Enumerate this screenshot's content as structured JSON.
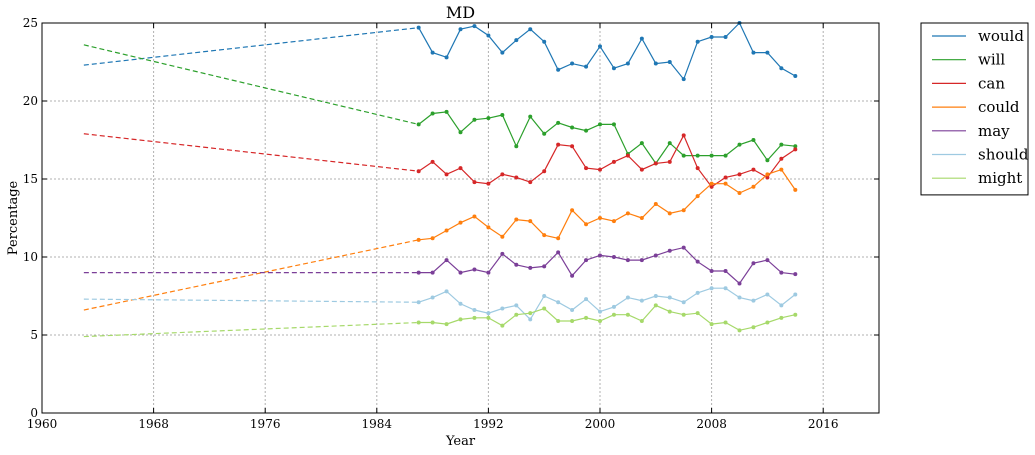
{
  "chart_data": {
    "type": "line",
    "title": "MD",
    "xlabel": "Year",
    "ylabel": "Percentage",
    "xlim": [
      1960,
      2020
    ],
    "ylim": [
      0,
      25
    ],
    "xticks": [
      1960,
      1968,
      1976,
      1984,
      1992,
      2000,
      2008,
      2016
    ],
    "yticks": [
      0,
      5,
      10,
      15,
      20,
      25
    ],
    "grid": true,
    "legend_position": "outside-right-top",
    "x": [
      1987,
      1988,
      1989,
      1990,
      1991,
      1992,
      1993,
      1994,
      1995,
      1996,
      1997,
      1998,
      1999,
      2000,
      2001,
      2002,
      2003,
      2004,
      2005,
      2006,
      2007,
      2008,
      2009,
      2010,
      2011,
      2012,
      2013,
      2014
    ],
    "series": [
      {
        "name": "would",
        "color": "#1f77b4",
        "start": [
          1963,
          22.3
        ],
        "values": [
          24.7,
          23.1,
          22.8,
          24.6,
          24.8,
          24.2,
          23.1,
          23.9,
          24.6,
          23.8,
          22.0,
          22.4,
          22.2,
          23.5,
          22.1,
          22.4,
          24.0,
          22.4,
          22.5,
          21.4,
          23.8,
          24.1,
          24.1,
          25.0,
          23.1,
          23.1,
          22.1,
          21.6
        ]
      },
      {
        "name": "will",
        "color": "#2ca02c",
        "start": [
          1963,
          23.6
        ],
        "values": [
          18.5,
          19.2,
          19.3,
          18.0,
          18.8,
          18.9,
          19.1,
          17.1,
          19.0,
          17.9,
          18.6,
          18.3,
          18.1,
          18.5,
          18.5,
          16.6,
          17.3,
          16.0,
          17.3,
          16.5,
          16.5,
          16.5,
          16.5,
          17.2,
          17.5,
          16.2,
          17.2,
          17.1
        ]
      },
      {
        "name": "can",
        "color": "#d62728",
        "start": [
          1963,
          17.9
        ],
        "values": [
          15.5,
          16.1,
          15.3,
          15.7,
          14.8,
          14.7,
          15.3,
          15.1,
          14.8,
          15.5,
          17.2,
          17.1,
          15.7,
          15.6,
          16.1,
          16.5,
          15.6,
          16.0,
          16.1,
          17.8,
          15.7,
          14.5,
          15.1,
          15.3,
          15.6,
          15.1,
          16.3,
          16.9
        ]
      },
      {
        "name": "could",
        "color": "#ff7f0e",
        "start": [
          1963,
          6.6
        ],
        "values": [
          11.1,
          11.2,
          11.7,
          12.2,
          12.6,
          11.9,
          11.3,
          12.4,
          12.3,
          11.4,
          11.2,
          13.0,
          12.1,
          12.5,
          12.3,
          12.8,
          12.5,
          13.4,
          12.8,
          13.0,
          13.9,
          14.7,
          14.7,
          14.1,
          14.5,
          15.3,
          15.6,
          14.3
        ]
      },
      {
        "name": "may",
        "color": "#7b3f98",
        "start": [
          1963,
          9.0
        ],
        "values": [
          9.0,
          9.0,
          9.8,
          9.0,
          9.2,
          9.0,
          10.2,
          9.5,
          9.3,
          9.4,
          10.3,
          8.8,
          9.8,
          10.1,
          10.0,
          9.8,
          9.8,
          10.1,
          10.4,
          10.6,
          9.7,
          9.1,
          9.1,
          8.3,
          9.6,
          9.8,
          9.0,
          8.9
        ]
      },
      {
        "name": "should",
        "color": "#9ecae1",
        "start": [
          1963,
          7.3
        ],
        "values": [
          7.1,
          7.4,
          7.8,
          7.0,
          6.6,
          6.4,
          6.7,
          6.9,
          6.0,
          7.5,
          7.1,
          6.6,
          7.3,
          6.5,
          6.8,
          7.4,
          7.2,
          7.5,
          7.4,
          7.1,
          7.7,
          8.0,
          8.0,
          7.4,
          7.2,
          7.6,
          6.9,
          7.6
        ]
      },
      {
        "name": "might",
        "color": "#a6d96a",
        "start": [
          1963,
          4.9
        ],
        "values": [
          5.8,
          5.8,
          5.7,
          6.0,
          6.1,
          6.1,
          5.6,
          6.3,
          6.4,
          6.7,
          5.9,
          5.9,
          6.1,
          5.9,
          6.3,
          6.3,
          5.9,
          6.9,
          6.5,
          6.3,
          6.4,
          5.7,
          5.8,
          5.3,
          5.5,
          5.8,
          6.1,
          6.3
        ]
      }
    ]
  }
}
